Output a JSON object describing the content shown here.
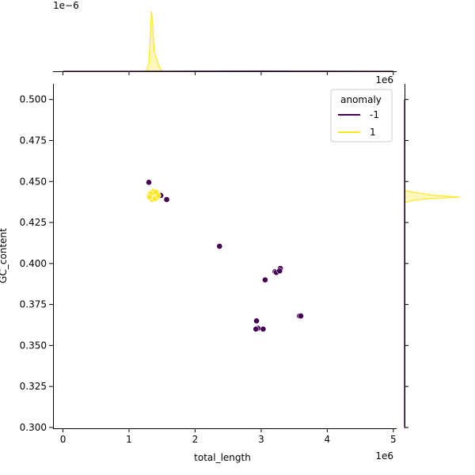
{
  "chart_data": {
    "type": "scatter",
    "title": "",
    "xlabel": "total_length",
    "ylabel": "GC_content",
    "x_offset_label": "1e6",
    "y_offset_label": "1e6",
    "top_marginal_offset_label": "1e−6",
    "xlim": [
      -150000,
      5050000
    ],
    "ylim": [
      0.2995,
      0.5095
    ],
    "xticks": [
      0,
      1,
      2,
      3,
      4,
      5
    ],
    "xtick_labels": [
      "0",
      "1",
      "2",
      "3",
      "4",
      "5"
    ],
    "yticks": [
      0.3,
      0.325,
      0.35,
      0.375,
      0.4,
      0.425,
      0.45,
      0.475,
      0.5
    ],
    "ytick_labels": [
      "0.300",
      "0.325",
      "0.350",
      "0.375",
      "0.400",
      "0.425",
      "0.450",
      "0.475",
      "0.500"
    ],
    "grid": false,
    "legend": {
      "title": "anomaly",
      "placement": "upper-right",
      "entries": [
        {
          "label": "-1",
          "color": "#440154"
        },
        {
          "label": "1",
          "color": "#fde725"
        }
      ]
    },
    "series": [
      {
        "name": "-1",
        "color": "#440154",
        "points": [
          [
            1300000,
            0.4495
          ],
          [
            1480000,
            0.4415
          ],
          [
            1570000,
            0.439
          ],
          [
            2370000,
            0.4105
          ],
          [
            3060000,
            0.39
          ],
          [
            3210000,
            0.395
          ],
          [
            3230000,
            0.3945
          ],
          [
            3290000,
            0.397
          ],
          [
            3280000,
            0.3955
          ],
          [
            2930000,
            0.365
          ],
          [
            2950000,
            0.3605
          ],
          [
            2920000,
            0.36
          ],
          [
            3030000,
            0.36
          ],
          [
            3580000,
            0.368
          ],
          [
            3600000,
            0.368
          ]
        ]
      },
      {
        "name": "1",
        "color": "#fde725",
        "points": [
          [
            1300000,
            0.441
          ],
          [
            1310000,
            0.442
          ],
          [
            1320000,
            0.443
          ],
          [
            1330000,
            0.44
          ],
          [
            1340000,
            0.4415
          ],
          [
            1350000,
            0.4435
          ],
          [
            1360000,
            0.442
          ],
          [
            1370000,
            0.4405
          ],
          [
            1380000,
            0.4425
          ],
          [
            1390000,
            0.441
          ],
          [
            1400000,
            0.443
          ],
          [
            1410000,
            0.442
          ],
          [
            1420000,
            0.44
          ],
          [
            1350000,
            0.439
          ],
          [
            1370000,
            0.444
          ],
          [
            1330000,
            0.4425
          ],
          [
            1390000,
            0.4395
          ],
          [
            1440000,
            0.4415
          ],
          [
            1310000,
            0.4405
          ],
          [
            1405000,
            0.4435
          ]
        ]
      }
    ],
    "marginals": {
      "x_kde": [
        {
          "name": "1",
          "color": "#fde725",
          "x": [
            1260000,
            1300000,
            1320000,
            1340000,
            1360000,
            1380000,
            1420000,
            1460000,
            1500000
          ],
          "density": [
            0.0,
            0.6,
            2.5,
            4.6,
            3.5,
            1.5,
            0.9,
            0.3,
            0.0
          ]
        },
        {
          "name": "-1",
          "color": "#440154",
          "x": [
            0,
            1000000,
            2000000,
            3000000,
            4000000,
            5000000
          ],
          "density": [
            0.0,
            0.005,
            0.01,
            0.015,
            0.008,
            0.0
          ]
        }
      ],
      "y_kde": [
        {
          "name": "1",
          "color": "#fde725",
          "y": [
            0.437,
            0.4385,
            0.4395,
            0.4405,
            0.4415,
            0.4425,
            0.4435,
            0.4445
          ],
          "density": [
            0.0,
            0.15,
            0.45,
            1.0,
            0.55,
            0.35,
            0.15,
            0.0
          ]
        },
        {
          "name": "-1",
          "color": "#440154",
          "y": [
            0.3,
            0.36,
            0.4,
            0.45,
            0.5
          ],
          "density": [
            0.0,
            0.006,
            0.005,
            0.004,
            0.0
          ]
        }
      ]
    }
  }
}
